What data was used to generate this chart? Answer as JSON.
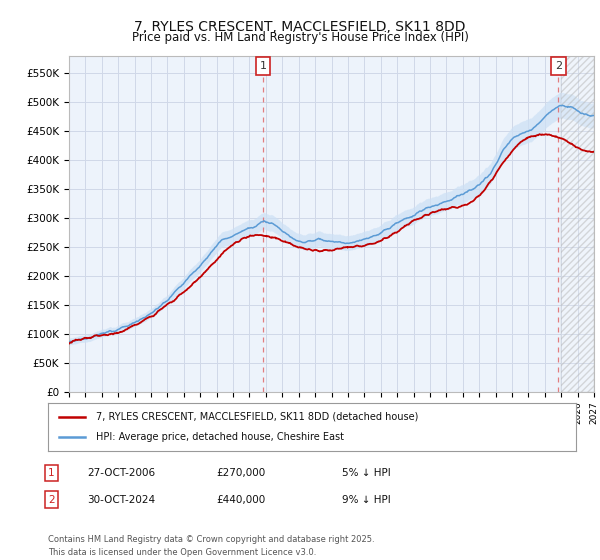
{
  "title": "7, RYLES CRESCENT, MACCLESFIELD, SK11 8DD",
  "subtitle": "Price paid vs. HM Land Registry's House Price Index (HPI)",
  "ylabel_ticks": [
    "£0",
    "£50K",
    "£100K",
    "£150K",
    "£200K",
    "£250K",
    "£300K",
    "£350K",
    "£400K",
    "£450K",
    "£500K",
    "£550K"
  ],
  "ytick_vals": [
    0,
    50000,
    100000,
    150000,
    200000,
    250000,
    300000,
    350000,
    400000,
    450000,
    500000,
    550000
  ],
  "ylim": [
    0,
    580000
  ],
  "x_start_year": 1995,
  "x_end_year": 2027,
  "marker1_year": 2006.83,
  "marker1_price": 270000,
  "marker2_year": 2024.83,
  "marker2_price": 440000,
  "hpi_color": "#5b9bd5",
  "hpi_fill_color": "#cce0f5",
  "price_color": "#c00000",
  "grid_color": "#d0d8e8",
  "bg_color": "#ffffff",
  "plot_bg_color": "#edf3fb",
  "legend_label_red": "7, RYLES CRESCENT, MACCLESFIELD, SK11 8DD (detached house)",
  "legend_label_blue": "HPI: Average price, detached house, Cheshire East",
  "annotation1_date": "27-OCT-2006",
  "annotation1_price": "£270,000",
  "annotation1_pct": "5% ↓ HPI",
  "annotation2_date": "30-OCT-2024",
  "annotation2_price": "£440,000",
  "annotation2_pct": "9% ↓ HPI",
  "footnote": "Contains HM Land Registry data © Crown copyright and database right 2025.\nThis data is licensed under the Open Government Licence v3.0."
}
